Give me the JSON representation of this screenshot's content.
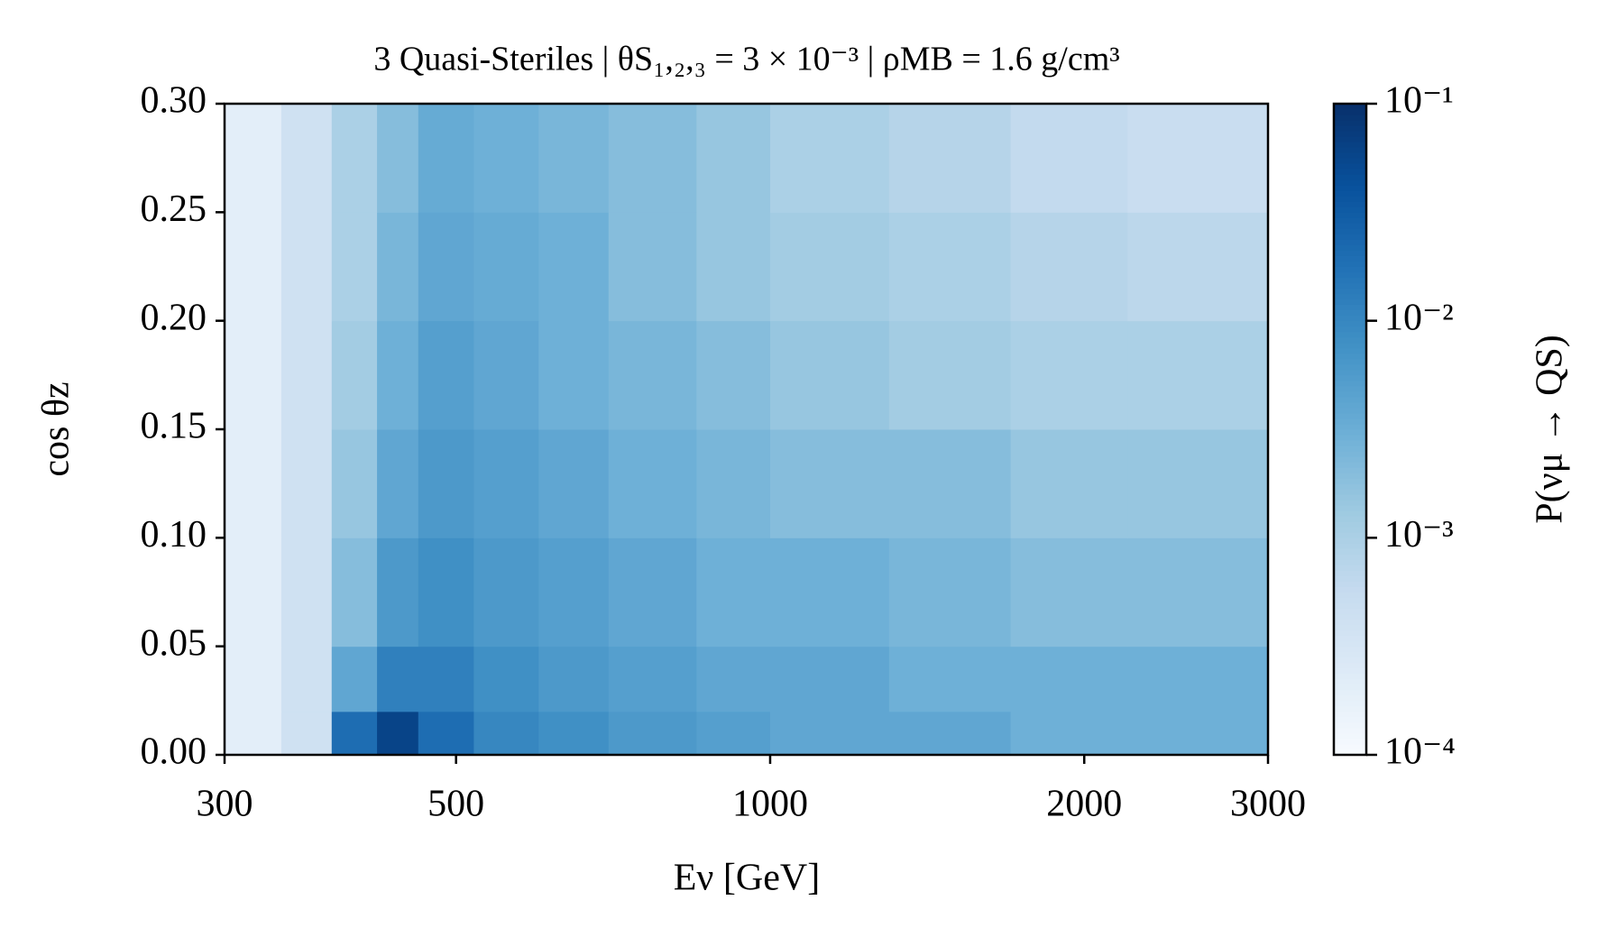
{
  "chart_data": {
    "type": "heatmap",
    "title": "3 Quasi-Steriles | θS₁,₂,₃ = 3 × 10⁻³ | ρMB = 1.6 g/cm³",
    "x_label": "Eν [GeV]",
    "y_label": "cos θz",
    "colorbar_label": "P(νμ → QS)",
    "colormap": "Blues",
    "xscale": "log",
    "xlim": [
      300,
      3000
    ],
    "xticks": [
      300,
      500,
      1000,
      2000,
      3000
    ],
    "ylim": [
      0,
      0.3
    ],
    "yticks": [
      {
        "value": 0,
        "label": "0.00"
      },
      {
        "value": 0.05,
        "label": "0.05"
      },
      {
        "value": 0.1,
        "label": "0.10"
      },
      {
        "value": 0.15,
        "label": "0.15"
      },
      {
        "value": 0.2,
        "label": "0.20"
      },
      {
        "value": 0.25,
        "label": "0.25"
      },
      {
        "value": 0.3,
        "label": "0.30"
      }
    ],
    "zscale": "log",
    "zlim": [
      0.0001,
      0.1
    ],
    "zticks": [
      {
        "value": 0.0001,
        "label": "10⁻⁴"
      },
      {
        "value": 0.001,
        "label": "10⁻³"
      },
      {
        "value": 0.01,
        "label": "10⁻²"
      },
      {
        "value": 0.1,
        "label": "10⁻¹"
      }
    ],
    "x": [
      300,
      340,
      380,
      420,
      460,
      520,
      600,
      700,
      850,
      1000,
      1300,
      1700,
      2200,
      3000
    ],
    "y": [
      0,
      0.02,
      0.05,
      0.1,
      0.15,
      0.2,
      0.25,
      0.3
    ],
    "z": [
      [
        0.0002,
        0.0004,
        0.02,
        0.06,
        0.02,
        0.01,
        0.008,
        0.006,
        0.005,
        0.004,
        0.004,
        0.003,
        0.003
      ],
      [
        0.0002,
        0.0004,
        0.004,
        0.012,
        0.012,
        0.008,
        0.006,
        0.005,
        0.004,
        0.004,
        0.003,
        0.003,
        0.003
      ],
      [
        0.0002,
        0.0004,
        0.002,
        0.006,
        0.008,
        0.006,
        0.005,
        0.004,
        0.003,
        0.003,
        0.0025,
        0.002,
        0.002
      ],
      [
        0.0002,
        0.0004,
        0.0015,
        0.004,
        0.006,
        0.005,
        0.004,
        0.003,
        0.0025,
        0.002,
        0.002,
        0.0015,
        0.0015
      ],
      [
        0.0002,
        0.0004,
        0.0012,
        0.003,
        0.005,
        0.004,
        0.003,
        0.0025,
        0.002,
        0.0015,
        0.0012,
        0.001,
        0.001
      ],
      [
        0.0002,
        0.0004,
        0.001,
        0.0025,
        0.004,
        0.0035,
        0.003,
        0.002,
        0.0015,
        0.0012,
        0.001,
        0.0008,
        0.0007
      ],
      [
        0.0002,
        0.0004,
        0.001,
        0.002,
        0.0035,
        0.003,
        0.0025,
        0.002,
        0.0015,
        0.001,
        0.0008,
        0.0006,
        0.0005
      ]
    ]
  }
}
